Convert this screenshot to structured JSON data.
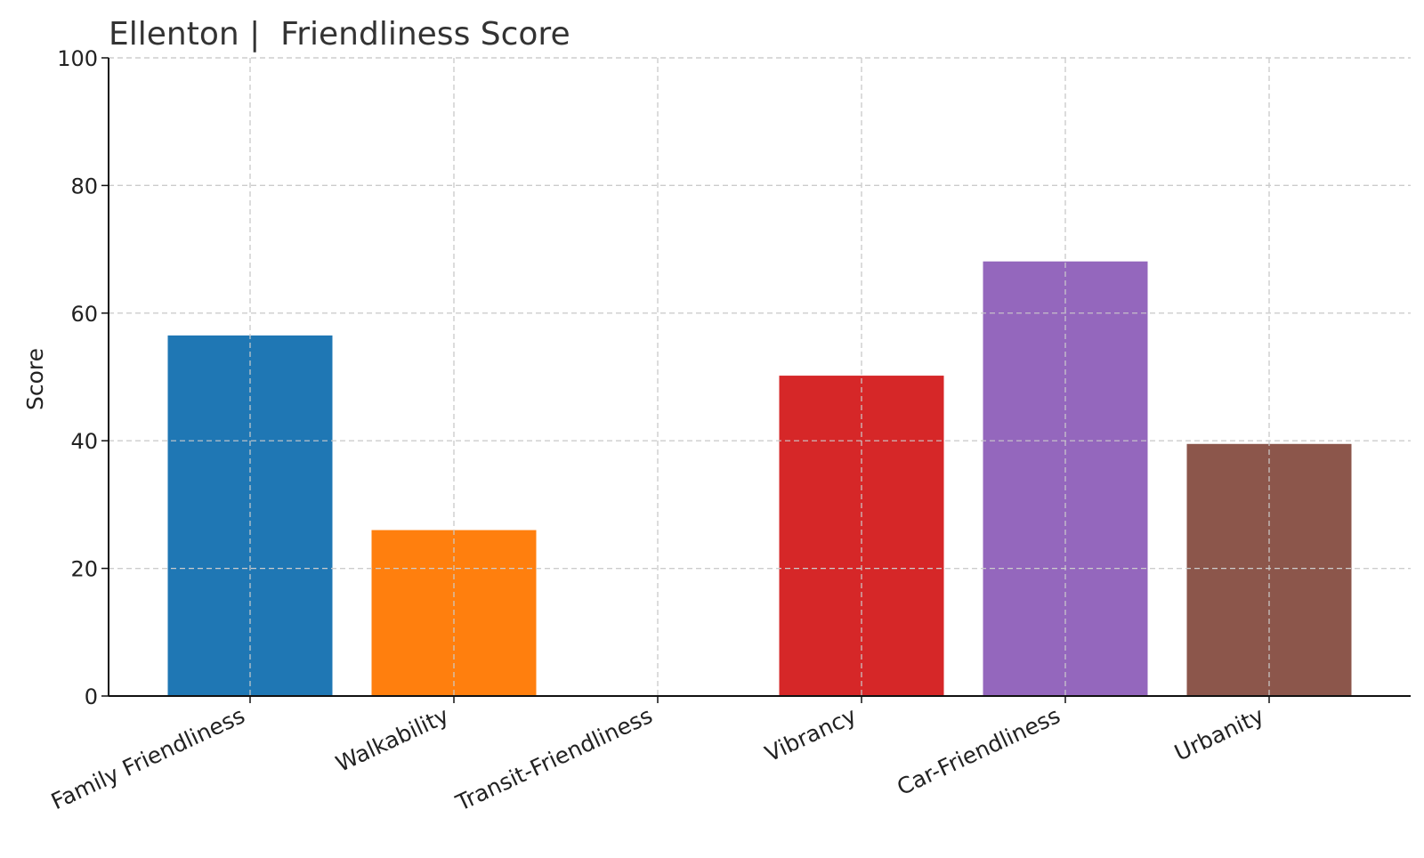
{
  "chart_data": {
    "type": "bar",
    "title": "Ellenton |  Friendliness Score",
    "xlabel": "",
    "ylabel": "Score",
    "ylim": [
      0,
      100
    ],
    "yticks": [
      "0",
      "20",
      "40",
      "60",
      "80",
      "100"
    ],
    "grid": true,
    "categories": [
      "Family Friendliness",
      "Walkability",
      "Transit-Friendliness",
      "Vibrancy",
      "Car-Friendliness",
      "Urbanity"
    ],
    "values": [
      56.5,
      26,
      0,
      50.2,
      68.1,
      39.5
    ],
    "colors": [
      "#1f77b4",
      "#ff7f0e",
      "#2ca02c",
      "#d62728",
      "#9467bd",
      "#8c564b"
    ]
  }
}
